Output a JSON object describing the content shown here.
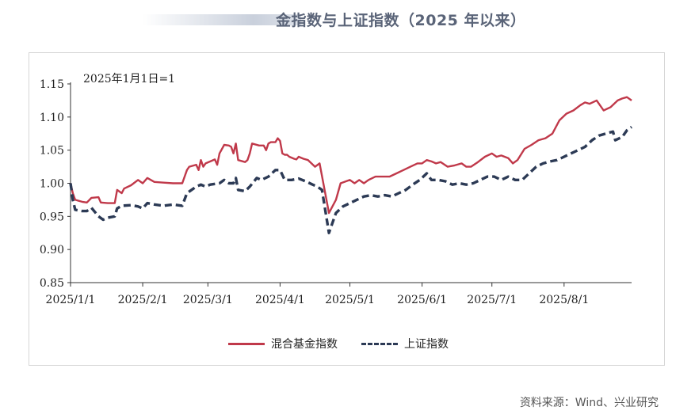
{
  "title": "金指数与上证指数（2025 年以来）",
  "note": "2025年1月1日=1",
  "source": "资料来源：Wind、兴业研究",
  "chart_data": {
    "type": "line",
    "ylim": [
      0.85,
      1.15
    ],
    "yticks": [
      "0.85",
      "0.90",
      "0.95",
      "1.00",
      "1.05",
      "1.10",
      "1.15"
    ],
    "xticks": [
      "2025/1/1",
      "2025/2/1",
      "2025/3/1",
      "2025/4/1",
      "2025/5/1",
      "2025/6/1",
      "2025/7/1",
      "2025/8/1"
    ],
    "grid": false,
    "legend_position": "bottom",
    "series": [
      {
        "name": "混合基金指数",
        "color": "#c0394a",
        "style": "solid",
        "points": [
          [
            "2025-01-01",
            1.0
          ],
          [
            "2025-01-02",
            0.985
          ],
          [
            "2025-01-03",
            0.975
          ],
          [
            "2025-01-06",
            0.972
          ],
          [
            "2025-01-08",
            0.971
          ],
          [
            "2025-01-10",
            0.978
          ],
          [
            "2025-01-13",
            0.979
          ],
          [
            "2025-01-14",
            0.971
          ],
          [
            "2025-01-17",
            0.97
          ],
          [
            "2025-01-20",
            0.97
          ],
          [
            "2025-01-21",
            0.99
          ],
          [
            "2025-01-23",
            0.985
          ],
          [
            "2025-01-24",
            0.992
          ],
          [
            "2025-01-27",
            0.997
          ],
          [
            "2025-01-30",
            1.005
          ],
          [
            "2025-02-01",
            1.0
          ],
          [
            "2025-02-03",
            1.008
          ],
          [
            "2025-02-06",
            1.002
          ],
          [
            "2025-02-10",
            1.001
          ],
          [
            "2025-02-14",
            1.0
          ],
          [
            "2025-02-18",
            1.0
          ],
          [
            "2025-02-20",
            1.02
          ],
          [
            "2025-02-21",
            1.025
          ],
          [
            "2025-02-24",
            1.028
          ],
          [
            "2025-02-25",
            1.02
          ],
          [
            "2025-02-26",
            1.035
          ],
          [
            "2025-02-27",
            1.025
          ],
          [
            "2025-02-28",
            1.03
          ],
          [
            "2025-03-02",
            1.033
          ],
          [
            "2025-03-04",
            1.036
          ],
          [
            "2025-03-05",
            1.028
          ],
          [
            "2025-03-06",
            1.045
          ],
          [
            "2025-03-08",
            1.058
          ],
          [
            "2025-03-10",
            1.057
          ],
          [
            "2025-03-11",
            1.055
          ],
          [
            "2025-03-12",
            1.045
          ],
          [
            "2025-03-13",
            1.06
          ],
          [
            "2025-03-14",
            1.035
          ],
          [
            "2025-03-17",
            1.032
          ],
          [
            "2025-03-18",
            1.035
          ],
          [
            "2025-03-19",
            1.045
          ],
          [
            "2025-03-20",
            1.06
          ],
          [
            "2025-03-23",
            1.057
          ],
          [
            "2025-03-25",
            1.057
          ],
          [
            "2025-03-26",
            1.05
          ],
          [
            "2025-03-27",
            1.06
          ],
          [
            "2025-03-28",
            1.062
          ],
          [
            "2025-03-30",
            1.062
          ],
          [
            "2025-03-31",
            1.068
          ],
          [
            "2025-04-01",
            1.064
          ],
          [
            "2025-04-02",
            1.045
          ],
          [
            "2025-04-03",
            1.043
          ],
          [
            "2025-04-04",
            1.043
          ],
          [
            "2025-04-05",
            1.04
          ],
          [
            "2025-04-07",
            1.037
          ],
          [
            "2025-04-08",
            1.036
          ],
          [
            "2025-04-09",
            1.04
          ],
          [
            "2025-04-11",
            1.037
          ],
          [
            "2025-04-13",
            1.035
          ],
          [
            "2025-04-16",
            1.025
          ],
          [
            "2025-04-18",
            1.03
          ],
          [
            "2025-04-22",
            0.955
          ],
          [
            "2025-04-25",
            0.975
          ],
          [
            "2025-04-27",
            1.0
          ],
          [
            "2025-05-01",
            1.005
          ],
          [
            "2025-05-03",
            1.0
          ],
          [
            "2025-05-05",
            1.005
          ],
          [
            "2025-05-07",
            1.0
          ],
          [
            "2025-05-09",
            1.005
          ],
          [
            "2025-05-12",
            1.01
          ],
          [
            "2025-05-15",
            1.01
          ],
          [
            "2025-05-18",
            1.01
          ],
          [
            "2025-05-21",
            1.015
          ],
          [
            "2025-05-24",
            1.02
          ],
          [
            "2025-05-27",
            1.025
          ],
          [
            "2025-05-30",
            1.03
          ],
          [
            "2025-06-01",
            1.03
          ],
          [
            "2025-06-03",
            1.035
          ],
          [
            "2025-06-05",
            1.033
          ],
          [
            "2025-06-07",
            1.03
          ],
          [
            "2025-06-09",
            1.032
          ],
          [
            "2025-06-12",
            1.025
          ],
          [
            "2025-06-15",
            1.027
          ],
          [
            "2025-06-18",
            1.03
          ],
          [
            "2025-06-20",
            1.025
          ],
          [
            "2025-06-22",
            1.025
          ],
          [
            "2025-06-25",
            1.032
          ],
          [
            "2025-06-28",
            1.04
          ],
          [
            "2025-07-01",
            1.045
          ],
          [
            "2025-07-03",
            1.04
          ],
          [
            "2025-07-05",
            1.042
          ],
          [
            "2025-07-08",
            1.038
          ],
          [
            "2025-07-10",
            1.03
          ],
          [
            "2025-07-12",
            1.035
          ],
          [
            "2025-07-15",
            1.052
          ],
          [
            "2025-07-18",
            1.058
          ],
          [
            "2025-07-21",
            1.065
          ],
          [
            "2025-07-24",
            1.068
          ],
          [
            "2025-07-27",
            1.075
          ],
          [
            "2025-07-30",
            1.095
          ],
          [
            "2025-08-02",
            1.105
          ],
          [
            "2025-08-05",
            1.11
          ],
          [
            "2025-08-08",
            1.118
          ],
          [
            "2025-08-10",
            1.122
          ],
          [
            "2025-08-12",
            1.12
          ],
          [
            "2025-08-15",
            1.125
          ],
          [
            "2025-08-18",
            1.11
          ],
          [
            "2025-08-21",
            1.115
          ],
          [
            "2025-08-24",
            1.125
          ],
          [
            "2025-08-26",
            1.128
          ],
          [
            "2025-08-28",
            1.13
          ],
          [
            "2025-08-30",
            1.125
          ]
        ]
      },
      {
        "name": "上证指数",
        "color": "#2c3a55",
        "style": "dashed",
        "points": [
          [
            "2025-01-01",
            1.0
          ],
          [
            "2025-01-02",
            0.975
          ],
          [
            "2025-01-03",
            0.96
          ],
          [
            "2025-01-06",
            0.958
          ],
          [
            "2025-01-08",
            0.958
          ],
          [
            "2025-01-10",
            0.963
          ],
          [
            "2025-01-13",
            0.95
          ],
          [
            "2025-01-15",
            0.945
          ],
          [
            "2025-01-17",
            0.948
          ],
          [
            "2025-01-20",
            0.95
          ],
          [
            "2025-01-21",
            0.962
          ],
          [
            "2025-01-23",
            0.966
          ],
          [
            "2025-01-27",
            0.967
          ],
          [
            "2025-01-30",
            0.965
          ],
          [
            "2025-02-01",
            0.962
          ],
          [
            "2025-02-03",
            0.97
          ],
          [
            "2025-02-06",
            0.968
          ],
          [
            "2025-02-10",
            0.966
          ],
          [
            "2025-02-14",
            0.968
          ],
          [
            "2025-02-18",
            0.966
          ],
          [
            "2025-02-20",
            0.985
          ],
          [
            "2025-02-24",
            0.995
          ],
          [
            "2025-02-26",
            0.998
          ],
          [
            "2025-02-28",
            0.995
          ],
          [
            "2025-03-02",
            0.998
          ],
          [
            "2025-03-04",
            0.999
          ],
          [
            "2025-03-06",
            1.0
          ],
          [
            "2025-03-08",
            1.005
          ],
          [
            "2025-03-10",
            1.0
          ],
          [
            "2025-03-12",
            1.0
          ],
          [
            "2025-03-13",
            1.008
          ],
          [
            "2025-03-14",
            0.99
          ],
          [
            "2025-03-17",
            0.988
          ],
          [
            "2025-03-19",
            0.995
          ],
          [
            "2025-03-22",
            1.008
          ],
          [
            "2025-03-24",
            1.005
          ],
          [
            "2025-03-27",
            1.01
          ],
          [
            "2025-03-30",
            1.02
          ],
          [
            "2025-04-01",
            1.02
          ],
          [
            "2025-04-03",
            1.005
          ],
          [
            "2025-04-06",
            1.005
          ],
          [
            "2025-04-09",
            1.007
          ],
          [
            "2025-04-12",
            1.003
          ],
          [
            "2025-04-15",
            0.998
          ],
          [
            "2025-04-17",
            0.995
          ],
          [
            "2025-04-19",
            0.99
          ],
          [
            "2025-04-22",
            0.925
          ],
          [
            "2025-04-25",
            0.955
          ],
          [
            "2025-04-28",
            0.965
          ],
          [
            "2025-05-01",
            0.97
          ],
          [
            "2025-05-04",
            0.975
          ],
          [
            "2025-05-07",
            0.98
          ],
          [
            "2025-05-10",
            0.982
          ],
          [
            "2025-05-13",
            0.98
          ],
          [
            "2025-05-16",
            0.982
          ],
          [
            "2025-05-19",
            0.98
          ],
          [
            "2025-05-22",
            0.985
          ],
          [
            "2025-05-25",
            0.99
          ],
          [
            "2025-05-28",
            0.998
          ],
          [
            "2025-05-31",
            1.005
          ],
          [
            "2025-06-03",
            1.015
          ],
          [
            "2025-06-05",
            1.005
          ],
          [
            "2025-06-08",
            1.005
          ],
          [
            "2025-06-11",
            1.003
          ],
          [
            "2025-06-14",
            0.998
          ],
          [
            "2025-06-17",
            1.0
          ],
          [
            "2025-06-20",
            0.998
          ],
          [
            "2025-06-23",
            1.0
          ],
          [
            "2025-06-26",
            1.005
          ],
          [
            "2025-06-29",
            1.01
          ],
          [
            "2025-07-02",
            1.01
          ],
          [
            "2025-07-05",
            1.005
          ],
          [
            "2025-07-08",
            1.01
          ],
          [
            "2025-07-11",
            1.005
          ],
          [
            "2025-07-14",
            1.005
          ],
          [
            "2025-07-17",
            1.015
          ],
          [
            "2025-07-20",
            1.025
          ],
          [
            "2025-07-23",
            1.03
          ],
          [
            "2025-07-26",
            1.033
          ],
          [
            "2025-07-29",
            1.035
          ],
          [
            "2025-08-01",
            1.04
          ],
          [
            "2025-08-04",
            1.045
          ],
          [
            "2025-08-07",
            1.05
          ],
          [
            "2025-08-10",
            1.055
          ],
          [
            "2025-08-13",
            1.065
          ],
          [
            "2025-08-16",
            1.072
          ],
          [
            "2025-08-19",
            1.075
          ],
          [
            "2025-08-22",
            1.078
          ],
          [
            "2025-08-23",
            1.065
          ],
          [
            "2025-08-26",
            1.07
          ],
          [
            "2025-08-28",
            1.08
          ],
          [
            "2025-08-30",
            1.085
          ]
        ]
      }
    ]
  }
}
